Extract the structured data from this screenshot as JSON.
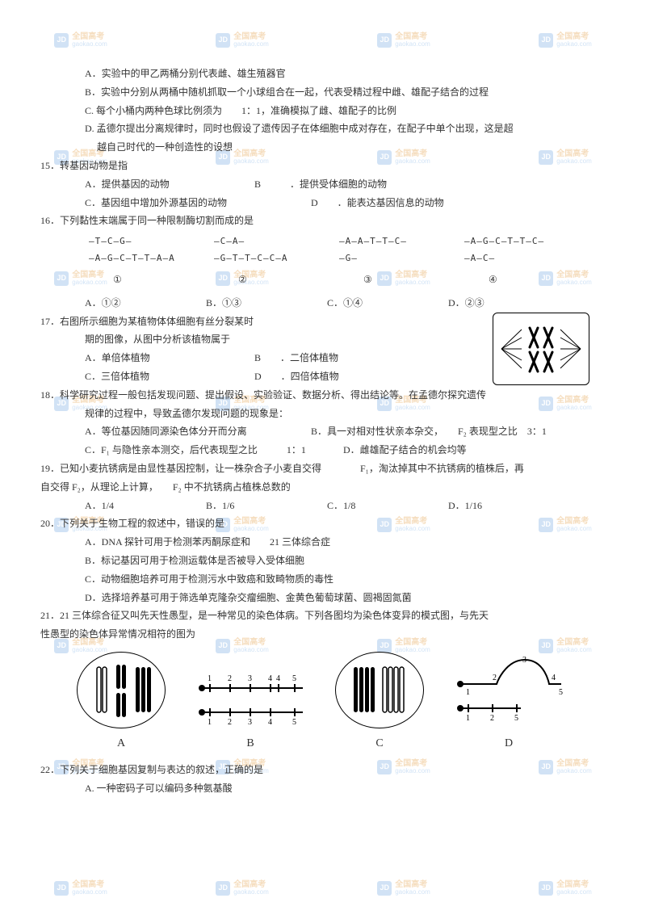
{
  "watermark": {
    "logo": "JD",
    "line1": "全国高考",
    "line2": "gaokao.com"
  },
  "watermark_rows": [
    40,
    185,
    335,
    490,
    640,
    790,
    940,
    1090
  ],
  "q14": {
    "A": "A．实验中的甲乙两桶分别代表雌、雄生殖器官",
    "B": "B．实验中分别从两桶中随机抓取一个小球组合在一起，代表受精过程中雌、雄配子结合的过程",
    "C": "C. 每个小桶内两种色球比例须为　　1：1，准确模拟了雌、雄配子的比例",
    "D": "D. 孟德尔提出分离规律时，同时也假设了遗传因子在体细胞中成对存在，在配子中单个出现，这是超",
    "D2": "越自己时代的一种创造性的设想"
  },
  "q15": {
    "stem": "15．转基因动物是指",
    "A": "A．提供基因的动物",
    "B": "B　　　．提供受体细胞的动物",
    "C": "C．基因组中增加外源基因的动物",
    "D": "D　　．能表达基因信息的动物"
  },
  "q16": {
    "stem": "16．下列黏性末端属于同一种限制酶切割而成的是",
    "dna": {
      "c1t": "—T—C—G—",
      "c1b": "—A—G—C—T—T—A—A",
      "c2t": "—C—A—",
      "c2b": "—G—T—T—C—C—A",
      "c3t": "—A—A—T—T—C—",
      "c3b": "—G—",
      "c4t": "—A—G—C—T—T—C—",
      "c4b": "—A—C—"
    },
    "labels": {
      "l1": "①",
      "l2": "②",
      "l3": "③",
      "l4": "④"
    },
    "opts": {
      "A": "A．①②",
      "B": "B．①③",
      "C": "C．①④",
      "D": "D．②③"
    }
  },
  "q17": {
    "stem1": "17．右图所示细胞为某植物体体细胞有丝分裂某时",
    "stem2": "期的图像，从图中分析该植物属于",
    "A": "A．单倍体植物",
    "B": "B　　．二倍体植物",
    "C": "C．三倍体植物",
    "D": "D　　．四倍体植物"
  },
  "q18": {
    "stem1": "18．科学研究过程一般包括发现问题、提出假设、实验验证、数据分析、得出结论等。在孟德尔探究遗传",
    "stem2": "规律的过程中，导致孟德尔发现问题的现象是：",
    "A": "A．等位基因随同源染色体分开而分离",
    "B": "B．具一对相对性状亲本杂交，　　F₂ 表现型之比　3：1",
    "C": "C．F₁ 与隐性亲本测交，后代表现型之比　　　1：1",
    "D": "D．雌雄配子结合的机会均等"
  },
  "q19": {
    "stem1": "19．已知小麦抗锈病是由显性基因控制，让一株杂合子小麦自交得　　　　F₁，淘汰掉其中不抗锈病的植株后，再",
    "stem2": "自交得 F₂，从理论上计算，　　F₂ 中不抗锈病占植株总数的",
    "A": "A．1/4",
    "B": "B．1/6",
    "C": "C．1/8",
    "D": "D．1/16"
  },
  "q20": {
    "stem": "20．下列关于生物工程的叙述中，错误的是",
    "A": "A．DNA 探针可用于检测苯丙酮尿症和　　21 三体综合症",
    "B": "B．标记基因可用于检测运载体是否被导入受体细胞",
    "C": "C．动物细胞培养可用于检测污水中致癌和致畸物质的毒性",
    "D": "D．选择培养基可用于筛选单克隆杂交瘤细胞、金黄色葡萄球菌、圆褐固氮菌"
  },
  "q21": {
    "stem1": "21．21 三体综合征又叫先天性愚型，是一种常见的染色体病。下列各图均为染色体变异的模式图，与先天",
    "stem2": "性愚型的染色体异常情况相符的图为",
    "labels": {
      "A": "A",
      "B": "B",
      "C": "C",
      "D": "D"
    }
  },
  "q22": {
    "stem": "22．下列关于细胞基因复制与表达的叙述，正确的是",
    "A": "A. 一种密码子可以编码多种氨基酸"
  }
}
